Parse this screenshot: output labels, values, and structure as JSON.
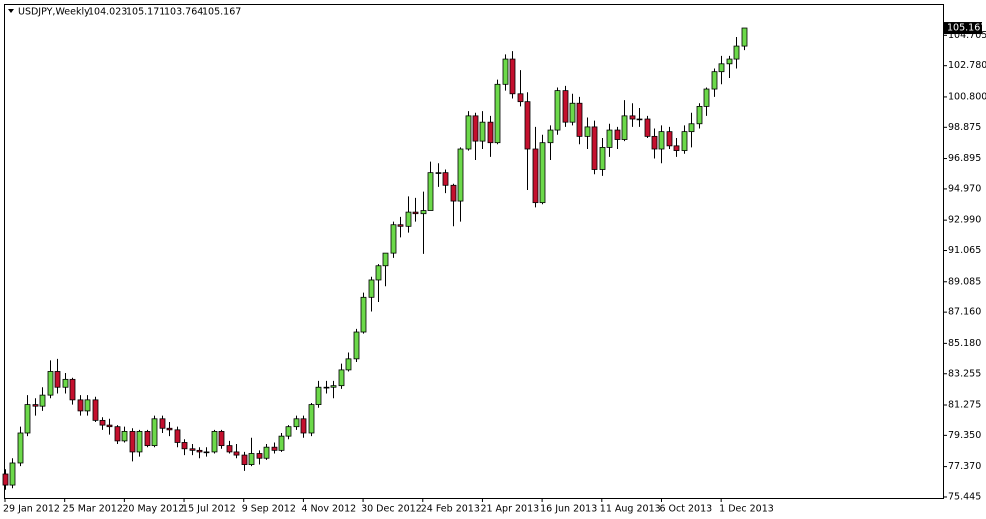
{
  "chart_data": {
    "type": "candlestick",
    "symbol": "USDJPY,Weekly",
    "categories": [
      "29 Jan 2012",
      null,
      null,
      null,
      null,
      null,
      null,
      null,
      "25 Mar 2012",
      null,
      null,
      null,
      null,
      null,
      null,
      null,
      "20 May 2012",
      null,
      null,
      null,
      null,
      null,
      null,
      null,
      "15 Jul 2012",
      null,
      null,
      null,
      null,
      null,
      null,
      null,
      "9 Sep 2012",
      null,
      null,
      null,
      null,
      null,
      null,
      null,
      "4 Nov 2012",
      null,
      null,
      null,
      null,
      null,
      null,
      null,
      "30 Dec 2012",
      null,
      null,
      null,
      null,
      null,
      null,
      null,
      "24 Feb 2013",
      null,
      null,
      null,
      null,
      null,
      null,
      null,
      "21 Apr 2013",
      null,
      null,
      null,
      null,
      null,
      null,
      null,
      "16 Jun 2013",
      null,
      null,
      null,
      null,
      null,
      null,
      null,
      "11 Aug 2013",
      null,
      null,
      null,
      null,
      null,
      null,
      null,
      "6 Oct 2013",
      null,
      null,
      null,
      null,
      null,
      null,
      null,
      "1 Dec 2013",
      null,
      null,
      null
    ],
    "open": [
      76.9,
      76.2,
      77.6,
      79.5,
      81.3,
      81.2,
      81.9,
      83.4,
      82.4,
      82.9,
      81.6,
      80.9,
      81.6,
      80.3,
      80.0,
      79.9,
      79.0,
      79.6,
      78.3,
      79.6,
      78.7,
      80.4,
      79.8,
      79.7,
      78.9,
      78.5,
      78.4,
      78.3,
      78.3,
      79.6,
      78.7,
      78.3,
      78.1,
      77.5,
      78.2,
      77.9,
      78.6,
      78.4,
      79.3,
      79.9,
      80.4,
      79.5,
      81.3,
      82.4,
      82.4,
      82.5,
      83.5,
      84.2,
      85.9,
      88.1,
      89.2,
      90.1,
      90.9,
      92.7,
      92.6,
      93.5,
      93.4,
      93.6,
      96.0,
      96.0,
      95.2,
      94.2,
      97.5,
      99.6,
      98.0,
      99.2,
      97.9,
      101.6,
      103.2,
      101.0,
      100.5,
      97.5,
      94.1,
      97.9,
      98.7,
      101.2,
      99.2,
      100.4,
      98.3,
      98.9,
      96.2,
      97.6,
      98.7,
      98.1,
      99.6,
      99.4,
      99.4,
      98.3,
      97.5,
      98.6,
      97.7,
      97.4,
      98.6,
      99.1,
      100.2,
      101.3,
      102.4,
      102.9,
      103.2,
      104.023
    ],
    "high": [
      77.2,
      77.9,
      79.9,
      81.9,
      81.7,
      82.4,
      84.1,
      84.2,
      83.3,
      83.0,
      81.9,
      81.9,
      81.8,
      80.5,
      80.4,
      80.0,
      79.9,
      79.8,
      79.7,
      79.7,
      80.6,
      80.6,
      80.2,
      79.9,
      79.1,
      78.8,
      78.6,
      78.6,
      79.7,
      79.7,
      79.0,
      78.8,
      78.3,
      79.2,
      78.4,
      78.8,
      78.9,
      79.5,
      80.0,
      80.6,
      80.6,
      81.4,
      82.8,
      82.8,
      82.8,
      83.9,
      84.6,
      86.1,
      88.4,
      89.4,
      90.2,
      90.9,
      92.9,
      93.2,
      94.5,
      94.4,
      94.8,
      96.7,
      96.6,
      96.2,
      95.3,
      97.6,
      99.9,
      99.8,
      99.9,
      99.6,
      101.9,
      103.5,
      103.7,
      102.5,
      101.1,
      98.9,
      98.4,
      99.0,
      101.4,
      101.5,
      101.0,
      100.8,
      99.5,
      99.3,
      98.2,
      99.1,
      98.9,
      100.6,
      100.4,
      100.1,
      99.6,
      98.8,
      99.0,
      98.9,
      98.2,
      99.0,
      99.8,
      100.4,
      101.4,
      102.6,
      103.4,
      103.4,
      104.6,
      105.171
    ],
    "low": [
      75.9,
      76.0,
      77.4,
      79.3,
      80.6,
      80.9,
      81.7,
      82.0,
      82.0,
      81.3,
      80.6,
      80.6,
      80.2,
      79.7,
      79.4,
      78.8,
      78.9,
      77.7,
      78.0,
      78.6,
      78.6,
      79.5,
      79.3,
      78.6,
      78.1,
      78.1,
      77.9,
      78.0,
      78.2,
      78.5,
      78.2,
      77.9,
      77.1,
      77.4,
      77.5,
      77.8,
      78.2,
      78.3,
      79.1,
      79.7,
      79.2,
      79.3,
      81.1,
      82.0,
      81.7,
      82.3,
      83.4,
      84.0,
      85.8,
      87.2,
      87.8,
      88.8,
      90.6,
      91.9,
      92.2,
      92.9,
      90.85,
      93.6,
      95.1,
      94.7,
      92.6,
      92.9,
      97.4,
      96.8,
      97.5,
      97.0,
      97.8,
      101.2,
      100.7,
      100.2,
      94.9,
      93.8,
      94.0,
      96.8,
      98.4,
      98.9,
      99.0,
      97.8,
      97.5,
      95.9,
      95.8,
      97.0,
      97.5,
      98.0,
      98.9,
      98.9,
      98.2,
      96.9,
      96.6,
      97.5,
      97.0,
      97.2,
      97.6,
      98.8,
      99.6,
      100.8,
      101.6,
      102.0,
      102.6,
      103.764
    ],
    "close": [
      76.2,
      77.6,
      79.5,
      81.3,
      81.2,
      81.9,
      83.4,
      82.4,
      82.9,
      81.6,
      80.9,
      81.6,
      80.3,
      80.0,
      79.9,
      79.0,
      79.6,
      78.3,
      79.6,
      78.7,
      80.4,
      79.8,
      79.7,
      78.9,
      78.5,
      78.4,
      78.3,
      78.3,
      79.6,
      78.7,
      78.3,
      78.1,
      77.5,
      78.2,
      77.9,
      78.6,
      78.4,
      79.3,
      79.9,
      80.4,
      79.5,
      81.3,
      82.4,
      82.4,
      82.5,
      83.5,
      84.2,
      85.9,
      88.1,
      89.2,
      90.1,
      90.9,
      92.7,
      92.6,
      93.5,
      93.4,
      93.6,
      96.0,
      96.0,
      95.2,
      94.2,
      97.5,
      99.6,
      98.0,
      99.2,
      97.9,
      101.6,
      103.2,
      101.0,
      100.5,
      97.5,
      94.1,
      97.9,
      98.7,
      101.2,
      99.2,
      100.4,
      98.3,
      98.9,
      96.2,
      97.6,
      98.7,
      98.1,
      99.6,
      99.4,
      99.4,
      98.3,
      97.5,
      98.6,
      97.7,
      97.4,
      98.6,
      99.1,
      100.2,
      101.3,
      102.4,
      102.9,
      103.2,
      104.023,
      105.167
    ],
    "up_color": "#6cd94a",
    "down_color": "#c4102e",
    "ylim": [
      75.38,
      106.69
    ],
    "yticks": [
      {
        "value": 104.705,
        "label": "104.705"
      },
      {
        "value": 102.78,
        "label": "102.780"
      },
      {
        "value": 100.8,
        "label": "100.800"
      },
      {
        "value": 98.875,
        "label": "98.875"
      },
      {
        "value": 96.895,
        "label": "96.895"
      },
      {
        "value": 94.97,
        "label": "94.970"
      },
      {
        "value": 92.99,
        "label": "92.990"
      },
      {
        "value": 91.065,
        "label": "91.065"
      },
      {
        "value": 89.085,
        "label": "89.085"
      },
      {
        "value": 87.16,
        "label": "87.160"
      },
      {
        "value": 85.18,
        "label": "85.180"
      },
      {
        "value": 83.255,
        "label": "83.255"
      },
      {
        "value": 81.275,
        "label": "81.275"
      },
      {
        "value": 79.35,
        "label": "79.350"
      },
      {
        "value": 77.37,
        "label": "77.370"
      },
      {
        "value": 75.445,
        "label": "75.445"
      }
    ]
  }
}
